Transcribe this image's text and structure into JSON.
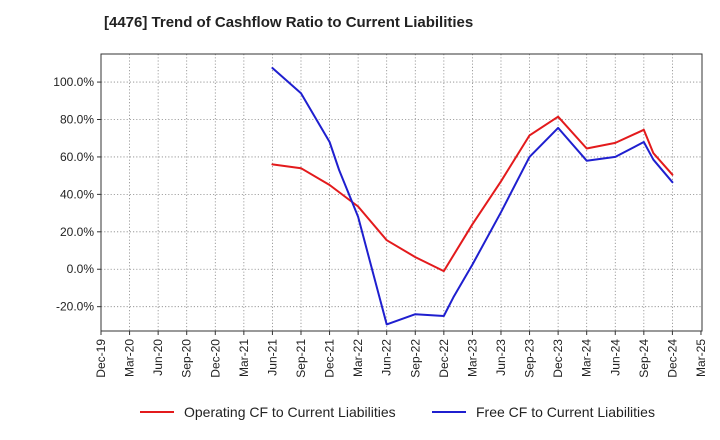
{
  "chart_data": {
    "type": "line",
    "title": "[4476]  Trend of Cashflow Ratio to Current Liabilities",
    "xlabel": "",
    "ylabel": "",
    "x_ticks": [
      "Dec-19",
      "Mar-20",
      "Jun-20",
      "Sep-20",
      "Dec-20",
      "Mar-21",
      "Jun-21",
      "Sep-21",
      "Dec-21",
      "Mar-22",
      "Jun-22",
      "Sep-22",
      "Dec-22",
      "Mar-23",
      "Jun-23",
      "Sep-23",
      "Dec-23",
      "Mar-24",
      "Jun-24",
      "Sep-24",
      "Dec-24",
      "Mar-25"
    ],
    "y_ticks": [
      "100.0%",
      "80.0%",
      "60.0%",
      "40.0%",
      "20.0%",
      "0.0%",
      "-20.0%"
    ],
    "y_tick_values": [
      100,
      80,
      60,
      40,
      20,
      0,
      -20
    ],
    "ylim": [
      -33,
      115
    ],
    "grid": true,
    "legend_position": "bottom",
    "series": [
      {
        "name": "Operating CF to Current Liabilities",
        "color": "#e31a1c",
        "points": [
          {
            "x": "Jun-21",
            "y": 56.0
          },
          {
            "x": "Sep-21",
            "y": 54.0
          },
          {
            "x": "Dec-21",
            "y": 45.0
          },
          {
            "x": "Mar-22",
            "y": 33.5
          },
          {
            "x": "Jun-22",
            "y": 15.5
          },
          {
            "x": "Sep-22",
            "y": 6.5
          },
          {
            "x": "Dec-22",
            "y": -1.0
          },
          {
            "x": "Mar-23",
            "y": 24.0
          },
          {
            "x": "Jun-23",
            "y": 47.0
          },
          {
            "x": "Sep-23",
            "y": 71.5
          },
          {
            "x": "Dec-23",
            "y": 81.5
          },
          {
            "x": "Mar-24",
            "y": 64.5
          },
          {
            "x": "Jun-24",
            "y": 67.5
          },
          {
            "x": "Sep-24",
            "y": 74.5
          },
          {
            "x": "Oct-24",
            "y": 62.0
          },
          {
            "x": "Dec-24",
            "y": 50.5
          }
        ]
      },
      {
        "name": "Free CF to Current Liabilities",
        "color": "#1f1fcf",
        "points": [
          {
            "x": "Jun-21",
            "y": 107.5
          },
          {
            "x": "Sep-21",
            "y": 94.0
          },
          {
            "x": "Dec-21",
            "y": 68.0
          },
          {
            "x": "Jan-22",
            "y": 53.0
          },
          {
            "x": "Mar-22",
            "y": 28.0
          },
          {
            "x": "Jun-22",
            "y": -29.5
          },
          {
            "x": "Sep-22",
            "y": -24.0
          },
          {
            "x": "Dec-22",
            "y": -25.0
          },
          {
            "x": "Jan-23",
            "y": -15.0
          },
          {
            "x": "Mar-23",
            "y": 2.5
          },
          {
            "x": "Jun-23",
            "y": 30.5
          },
          {
            "x": "Sep-23",
            "y": 60.0
          },
          {
            "x": "Dec-23",
            "y": 75.5
          },
          {
            "x": "Mar-24",
            "y": 58.0
          },
          {
            "x": "Jun-24",
            "y": 60.0
          },
          {
            "x": "Sep-24",
            "y": 68.0
          },
          {
            "x": "Oct-24",
            "y": 58.5
          },
          {
            "x": "Dec-24",
            "y": 46.5
          }
        ]
      }
    ]
  }
}
